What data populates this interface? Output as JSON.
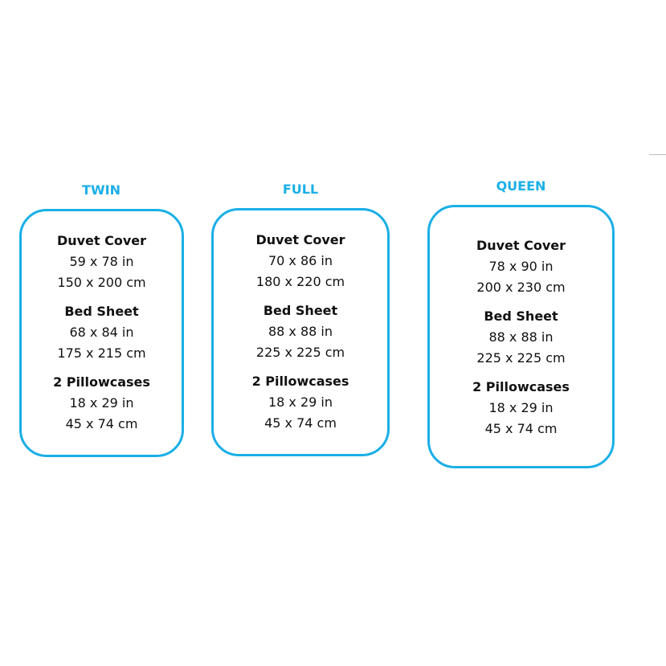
{
  "accent_color": "#1aafe6",
  "sizes": [
    {
      "title": "TWIN",
      "sections": [
        {
          "heading": "Duvet Cover",
          "in": "59 x 78 in",
          "cm": "150 x 200 cm"
        },
        {
          "heading": "Bed Sheet",
          "in": "68 x 84 in",
          "cm": "175 x 215 cm"
        },
        {
          "heading": "2 Pillowcases",
          "in": "18 x 29 in",
          "cm": "45 x 74 cm"
        }
      ]
    },
    {
      "title": "FULL",
      "sections": [
        {
          "heading": "Duvet Cover",
          "in": "70 x 86 in",
          "cm": "180 x 220 cm"
        },
        {
          "heading": "Bed Sheet",
          "in": "88 x 88 in",
          "cm": "225 x 225 cm"
        },
        {
          "heading": "2 Pillowcases",
          "in": "18 x 29 in",
          "cm": "45 x 74 cm"
        }
      ]
    },
    {
      "title": "QUEEN",
      "sections": [
        {
          "heading": "Duvet Cover",
          "in": "78 x 90 in",
          "cm": "200 x 230 cm"
        },
        {
          "heading": "Bed Sheet",
          "in": "88 x 88 in",
          "cm": "225 x 225 cm"
        },
        {
          "heading": "2 Pillowcases",
          "in": "18 x 29 in",
          "cm": "45 x 74 cm"
        }
      ]
    }
  ]
}
